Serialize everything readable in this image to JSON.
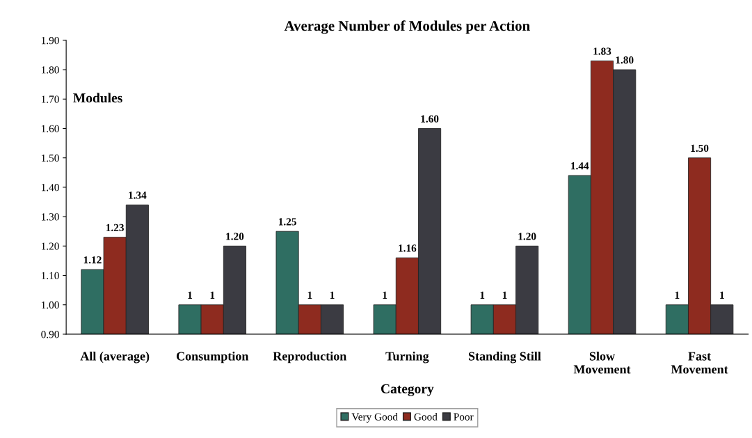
{
  "chart_data": {
    "type": "bar",
    "title": "Average Number of Modules per Action",
    "xlabel": "Category",
    "ylabel": "Modules",
    "categories": [
      "All (average)",
      "Consumption",
      "Reproduction",
      "Turning",
      "Standing Still",
      "Slow\nMovement",
      "Fast\nMovement"
    ],
    "series": [
      {
        "name": "Very Good",
        "color": "#2f6e62",
        "values": [
          1.12,
          1,
          1.25,
          1,
          1,
          1.44,
          1
        ],
        "value_labels": [
          "1.12",
          "1",
          "1.25",
          "1",
          "1",
          "1.44",
          "1"
        ]
      },
      {
        "name": "Good",
        "color": "#8e2b1f",
        "values": [
          1.23,
          1,
          1,
          1.16,
          1,
          1.83,
          1.5
        ],
        "value_labels": [
          "1.23",
          "1",
          "1",
          "1.16",
          "1",
          "1.83",
          "1.50"
        ]
      },
      {
        "name": "Poor",
        "color": "#3b3b42",
        "values": [
          1.34,
          1.2,
          1,
          1.6,
          1.2,
          1.8,
          1
        ],
        "value_labels": [
          "1.34",
          "1.20",
          "1",
          "1.60",
          "1.20",
          "1.80",
          "1"
        ]
      }
    ],
    "ylim": [
      0.9,
      1.9
    ],
    "yticks": [
      {
        "value": 0.9,
        "label": "0.90"
      },
      {
        "value": 1.0,
        "label": "1.00"
      },
      {
        "value": 1.1,
        "label": "1.10"
      },
      {
        "value": 1.2,
        "label": "1.20"
      },
      {
        "value": 1.3,
        "label": "1.30"
      },
      {
        "value": 1.4,
        "label": "1.40"
      },
      {
        "value": 1.5,
        "label": "1.50"
      },
      {
        "value": 1.6,
        "label": "1.60"
      },
      {
        "value": 1.7,
        "label": "1.70"
      },
      {
        "value": 1.8,
        "label": "1.80"
      },
      {
        "value": 1.9,
        "label": "1.90"
      }
    ],
    "grid": false,
    "legend": "bottom"
  }
}
